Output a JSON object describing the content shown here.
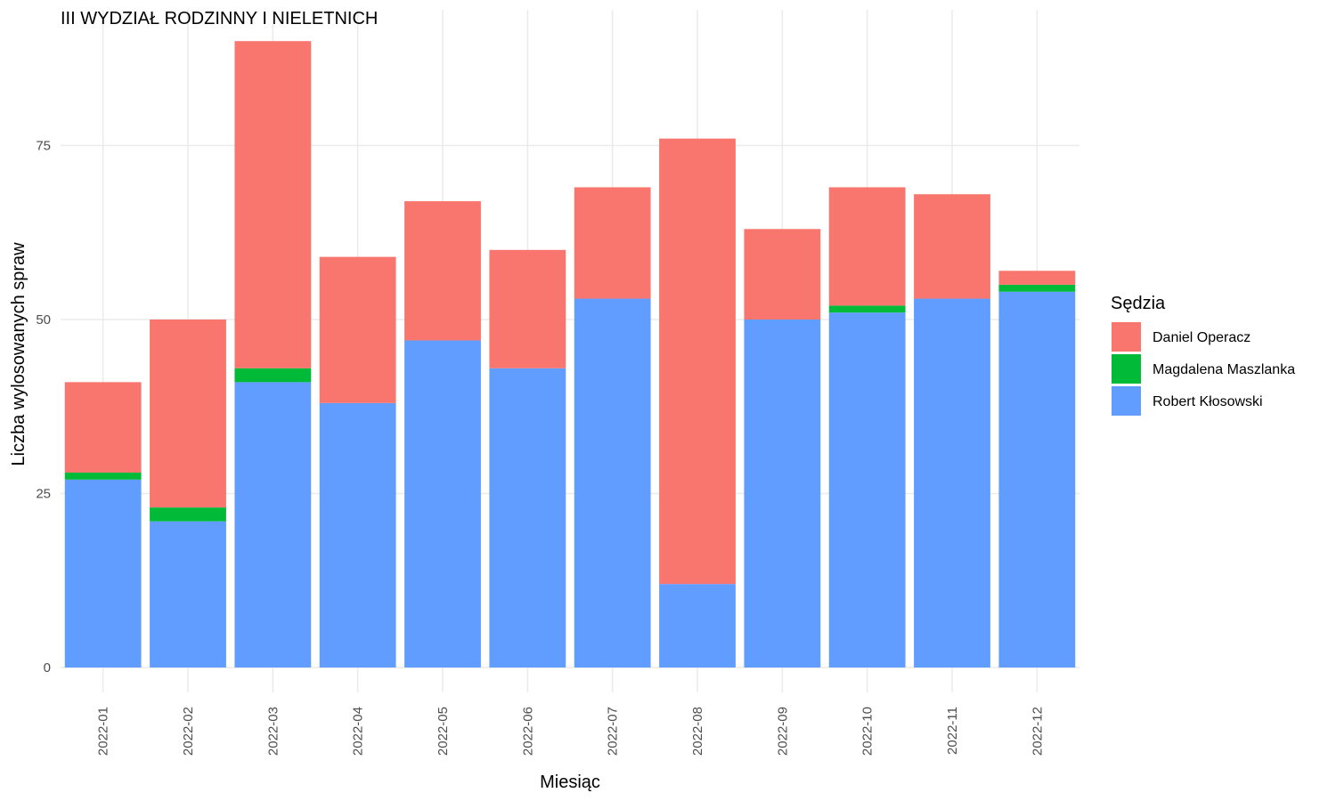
{
  "chart_data": {
    "type": "bar",
    "stacked": true,
    "title": "III WYDZIAŁ RODZINNY I NIELETNICH",
    "xlabel": "Miesiąc",
    "ylabel": "Liczba wylosowanych spraw",
    "categories": [
      "2022-01",
      "2022-02",
      "2022-03",
      "2022-04",
      "2022-05",
      "2022-06",
      "2022-07",
      "2022-08",
      "2022-09",
      "2022-10",
      "2022-11",
      "2022-12"
    ],
    "series": [
      {
        "name": "Robert Kłosowski",
        "color": "#619CFF",
        "values": [
          27,
          21,
          41,
          38,
          47,
          43,
          53,
          12,
          50,
          51,
          53,
          54
        ]
      },
      {
        "name": "Magdalena Maszlanka",
        "color": "#00BA38",
        "values": [
          1,
          2,
          2,
          0,
          0,
          0,
          0,
          0,
          0,
          1,
          0,
          1
        ]
      },
      {
        "name": "Daniel Operacz",
        "color": "#F8766D",
        "values": [
          13,
          27,
          47,
          21,
          20,
          17,
          16,
          64,
          13,
          17,
          15,
          2
        ]
      }
    ],
    "ylim": [
      0,
      90
    ],
    "yticks": [
      0,
      25,
      50,
      75
    ],
    "grid": true,
    "legend": {
      "title": "Sędzia",
      "placement": "right",
      "order": [
        "Daniel Operacz",
        "Magdalena Maszlanka",
        "Robert Kłosowski"
      ]
    }
  }
}
